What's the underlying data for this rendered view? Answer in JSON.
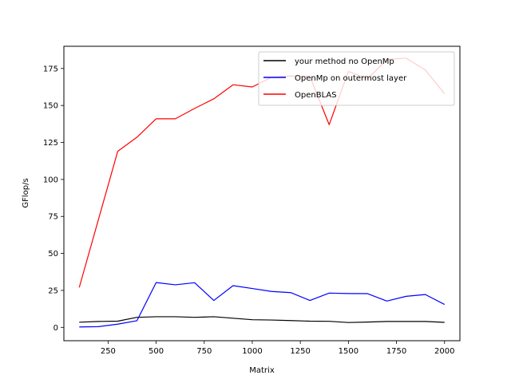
{
  "chart_data": {
    "type": "line",
    "title": "",
    "xlabel": "Matrix",
    "ylabel": "GFlop/s",
    "xlim": [
      20,
      2080
    ],
    "ylim": [
      -9,
      190
    ],
    "xticks": [
      250,
      500,
      750,
      1000,
      1250,
      1500,
      1750,
      2000
    ],
    "yticks": [
      0,
      25,
      50,
      75,
      100,
      125,
      150,
      175
    ],
    "grid": false,
    "legend_position": "top-right",
    "x": [
      100,
      200,
      300,
      400,
      500,
      600,
      700,
      800,
      900,
      1000,
      1100,
      1200,
      1300,
      1400,
      1500,
      1600,
      1700,
      1800,
      1900,
      2000
    ],
    "series": [
      {
        "name": "your method no OpenMp",
        "color": "#000000",
        "values": [
          3.5,
          4.0,
          4.2,
          6.8,
          7.2,
          7.2,
          6.8,
          7.2,
          6.2,
          5.2,
          5.0,
          4.6,
          4.2,
          4.1,
          3.3,
          3.6,
          4.0,
          4.0,
          4.0,
          3.4
        ]
      },
      {
        "name": "OpenMp on outermost layer",
        "color": "#0000ff",
        "values": [
          0.3,
          0.5,
          2.2,
          4.5,
          30.3,
          28.8,
          30.2,
          18.2,
          28.2,
          26.3,
          24.3,
          23.5,
          18.2,
          23.2,
          22.9,
          22.8,
          17.8,
          21.0,
          22.2,
          15.5
        ]
      },
      {
        "name": "OpenBLAS",
        "color": "#ff0000",
        "values": [
          27.0,
          73.0,
          119.0,
          128.5,
          141.0,
          141.0,
          148.0,
          154.5,
          164.0,
          162.5,
          169.0,
          170.0,
          169.5,
          137.0,
          173.0,
          168.0,
          181.0,
          182.0,
          174.0,
          158.0
        ]
      }
    ]
  }
}
